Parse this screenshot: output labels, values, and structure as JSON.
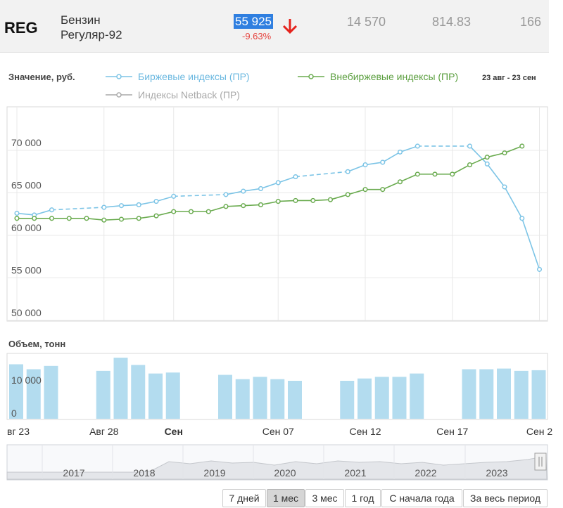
{
  "instrument": {
    "ticker": "REG",
    "name_line1": "Бензин",
    "name_line2": "Регуляр-92",
    "price": "55 925",
    "change": "-9.63%",
    "stat1": "14 570",
    "stat2": "814.83",
    "stat3": "166",
    "down_color": "#e5423d"
  },
  "legend": {
    "value_label": "Значение, руб.",
    "exchange": "Биржевые индексы (ПР)",
    "otc": "Внебиржевые индексы (ПР)",
    "netback": "Индексы Netback (ПР)",
    "date_range": "23 авг - 23 сен"
  },
  "volume_title": "Объем, тонн",
  "range_buttons": [
    {
      "label": "7 дней",
      "active": false
    },
    {
      "label": "1 мес",
      "active": true
    },
    {
      "label": "3 мес",
      "active": false
    },
    {
      "label": "1 год",
      "active": false
    },
    {
      "label": "С начала года",
      "active": false
    },
    {
      "label": "За весь период",
      "active": false
    }
  ],
  "navigator_years": [
    "2017",
    "2018",
    "2019",
    "2020",
    "2021",
    "2022",
    "2023"
  ],
  "chart_data": {
    "type": "line",
    "title": "",
    "ylabel": "Значение, руб.",
    "ylim": [
      50000,
      74000
    ],
    "yticks": [
      50000,
      55000,
      60000,
      65000,
      70000
    ],
    "ytick_labels": [
      "50 000",
      "55 000",
      "60 000",
      "65 000",
      "70 000"
    ],
    "xticks": [
      {
        "day": 0,
        "label": "вг 23",
        "bold": false
      },
      {
        "day": 5,
        "label": "Авг 28",
        "bold": false
      },
      {
        "day": 9,
        "label": "Сен",
        "bold": true
      },
      {
        "day": 15,
        "label": "Сен 07",
        "bold": false
      },
      {
        "day": 20,
        "label": "Сен 12",
        "bold": false
      },
      {
        "day": 25,
        "label": "Сен 17",
        "bold": false
      },
      {
        "day": 30,
        "label": "Сен 2",
        "bold": false
      }
    ],
    "series": [
      {
        "name": "Биржевые индексы (ПР)",
        "color": "#7cc4e6",
        "x": [
          0,
          1,
          2,
          5,
          6,
          7,
          8,
          9,
          12,
          13,
          14,
          15,
          16,
          19,
          20,
          21,
          22,
          23,
          26,
          27,
          28,
          29,
          30
        ],
        "values": [
          62600,
          62400,
          63000,
          63300,
          63500,
          63600,
          64000,
          64600,
          64800,
          65200,
          65500,
          66200,
          66900,
          67500,
          68300,
          68600,
          69800,
          70500,
          70500,
          68400,
          65700,
          62000,
          56000
        ]
      },
      {
        "name": "Внебиржевые индексы (ПР)",
        "color": "#6aab4f",
        "x": [
          0,
          1,
          2,
          3,
          4,
          5,
          6,
          7,
          8,
          9,
          10,
          11,
          12,
          13,
          14,
          15,
          16,
          17,
          18,
          19,
          20,
          21,
          22,
          23,
          24,
          25,
          26,
          27,
          28,
          29
        ],
        "values": [
          62000,
          62000,
          62000,
          62000,
          62000,
          61800,
          61900,
          62000,
          62300,
          62800,
          62800,
          62800,
          63400,
          63500,
          63600,
          64000,
          64100,
          64100,
          64200,
          64800,
          65400,
          65400,
          66300,
          67200,
          67200,
          67200,
          68300,
          69200,
          69700,
          70500
        ]
      },
      {
        "name": "Индексы Netback (ПР)",
        "color": "#aaaaaa",
        "x": [],
        "values": []
      }
    ],
    "volume": {
      "ylim": [
        0,
        20000
      ],
      "yticks": [
        0,
        10000
      ],
      "ytick_labels": [
        "0",
        "10 000"
      ],
      "x": [
        0,
        1,
        2,
        5,
        6,
        7,
        8,
        9,
        12,
        13,
        14,
        15,
        16,
        19,
        20,
        21,
        22,
        23,
        26,
        27,
        28,
        29,
        30
      ],
      "values": [
        16500,
        15000,
        16000,
        14500,
        18500,
        16300,
        13700,
        14000,
        13300,
        12000,
        12700,
        12000,
        11500,
        11500,
        12200,
        12700,
        12700,
        13700,
        15000,
        15000,
        15200,
        14500,
        14700
      ]
    }
  }
}
